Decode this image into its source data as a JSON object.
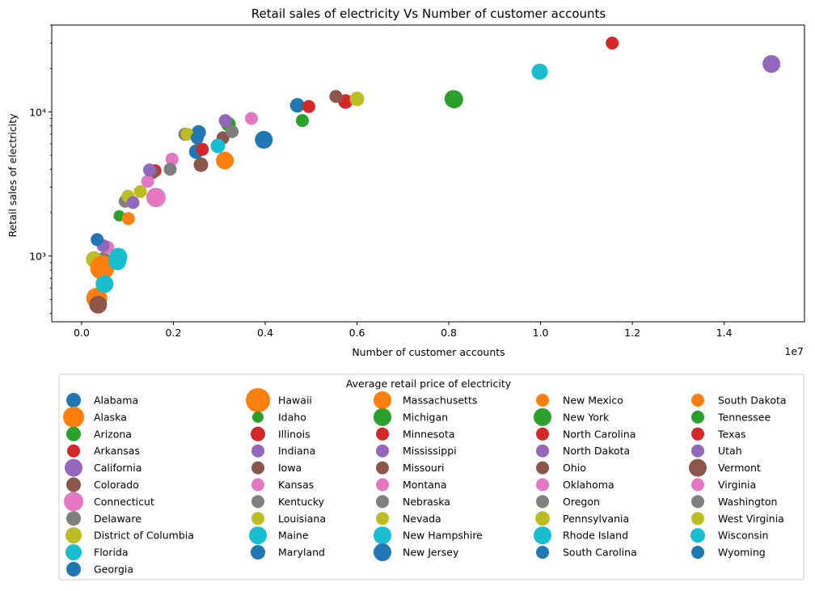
{
  "chart_data": {
    "type": "scatter",
    "title": "Retail sales of electricity Vs Number of customer accounts",
    "xlabel": "Number of customer accounts",
    "ylabel": "Retail sales of electricity",
    "x_offset_label": "1e7",
    "x_scale": "linear",
    "y_scale": "log",
    "xlim": [
      -650000,
      15750000
    ],
    "ylim": [
      350,
      40000
    ],
    "x_ticks": [
      0,
      2000000,
      4000000,
      6000000,
      8000000,
      10000000,
      12000000,
      14000000
    ],
    "x_tick_labels": [
      "0.0",
      "0.2",
      "0.4",
      "0.6",
      "0.8",
      "1.0",
      "1.2",
      "1.4"
    ],
    "y_ticks": [
      1000,
      10000
    ],
    "y_tick_labels": [
      "10³",
      "10⁴"
    ],
    "legend_title": "Average retail price of electricity",
    "legend_position": "below plot",
    "palette": [
      "#1f77b4",
      "#ff7f0e",
      "#2ca02c",
      "#d62728",
      "#9467bd",
      "#8c564b",
      "#e377c2",
      "#7f7f7f",
      "#bcbd22",
      "#17becf"
    ],
    "points": [
      {
        "state": "Alabama",
        "x": 2550000,
        "y": 7200,
        "size": 9
      },
      {
        "state": "Alaska",
        "x": 330000,
        "y": 510,
        "size": 13
      },
      {
        "state": "Arizona",
        "x": 3200000,
        "y": 8200,
        "size": 9
      },
      {
        "state": "Arkansas",
        "x": 1600000,
        "y": 3900,
        "size": 8
      },
      {
        "state": "California",
        "x": 15030000,
        "y": 21500,
        "size": 11
      },
      {
        "state": "Colorado",
        "x": 2600000,
        "y": 4300,
        "size": 9
      },
      {
        "state": "Connecticut",
        "x": 1620000,
        "y": 2550,
        "size": 12
      },
      {
        "state": "Delaware",
        "x": 480000,
        "y": 950,
        "size": 9
      },
      {
        "state": "District of Columbia",
        "x": 270000,
        "y": 950,
        "size": 10
      },
      {
        "state": "Florida",
        "x": 9980000,
        "y": 19000,
        "size": 10
      },
      {
        "state": "Georgia",
        "x": 4700000,
        "y": 11100,
        "size": 9
      },
      {
        "state": "Hawaii",
        "x": 450000,
        "y": 830,
        "size": 15
      },
      {
        "state": "Idaho",
        "x": 820000,
        "y": 1900,
        "size": 7
      },
      {
        "state": "Illinois",
        "x": 5750000,
        "y": 11800,
        "size": 9
      },
      {
        "state": "Indiana",
        "x": 3130000,
        "y": 8700,
        "size": 8
      },
      {
        "state": "Iowa",
        "x": 1550000,
        "y": 3800,
        "size": 8
      },
      {
        "state": "Kansas",
        "x": 1440000,
        "y": 3300,
        "size": 8
      },
      {
        "state": "Kentucky",
        "x": 2250000,
        "y": 7000,
        "size": 8
      },
      {
        "state": "Louisiana",
        "x": 2300000,
        "y": 7000,
        "size": 8
      },
      {
        "state": "Maine",
        "x": 780000,
        "y": 920,
        "size": 11
      },
      {
        "state": "Maryland",
        "x": 2500000,
        "y": 5300,
        "size": 9
      },
      {
        "state": "Massachusetts",
        "x": 3120000,
        "y": 4600,
        "size": 11
      },
      {
        "state": "Michigan",
        "x": 8100000,
        "y": 12300,
        "size": 11
      },
      {
        "state": "Minnesota",
        "x": 2630000,
        "y": 5500,
        "size": 8
      },
      {
        "state": "Mississippi",
        "x": 1480000,
        "y": 3950,
        "size": 8
      },
      {
        "state": "Missouri",
        "x": 3080000,
        "y": 6600,
        "size": 8
      },
      {
        "state": "Montana",
        "x": 570000,
        "y": 1150,
        "size": 8
      },
      {
        "state": "Nebraska",
        "x": 950000,
        "y": 2400,
        "size": 8
      },
      {
        "state": "Nevada",
        "x": 1010000,
        "y": 2600,
        "size": 8
      },
      {
        "state": "New Hampshire",
        "x": 800000,
        "y": 990,
        "size": 11
      },
      {
        "state": "New Jersey",
        "x": 3970000,
        "y": 6400,
        "size": 11
      },
      {
        "state": "New Mexico",
        "x": 1020000,
        "y": 1820,
        "size": 8
      },
      {
        "state": "New York",
        "x": 8120000,
        "y": 12200,
        "size": 11
      },
      {
        "state": "North Carolina",
        "x": 4950000,
        "y": 10900,
        "size": 8
      },
      {
        "state": "North Dakota",
        "x": 470000,
        "y": 1180,
        "size": 8
      },
      {
        "state": "Ohio",
        "x": 5540000,
        "y": 12800,
        "size": 8
      },
      {
        "state": "Oklahoma",
        "x": 1970000,
        "y": 4700,
        "size": 8
      },
      {
        "state": "Oregon",
        "x": 1930000,
        "y": 4000,
        "size": 8
      },
      {
        "state": "Pennsylvania",
        "x": 6000000,
        "y": 12300,
        "size": 9
      },
      {
        "state": "Rhode Island",
        "x": 500000,
        "y": 640,
        "size": 11
      },
      {
        "state": "South Carolina",
        "x": 2520000,
        "y": 6600,
        "size": 8
      },
      {
        "state": "South Dakota",
        "x": 450000,
        "y": 860,
        "size": 8
      },
      {
        "state": "Tennessee",
        "x": 4810000,
        "y": 8700,
        "size": 8
      },
      {
        "state": "Texas",
        "x": 11560000,
        "y": 30000,
        "size": 8
      },
      {
        "state": "Utah",
        "x": 1120000,
        "y": 2350,
        "size": 8
      },
      {
        "state": "Vermont",
        "x": 360000,
        "y": 460,
        "size": 11
      },
      {
        "state": "Virginia",
        "x": 3700000,
        "y": 9000,
        "size": 8
      },
      {
        "state": "Washington",
        "x": 3280000,
        "y": 7300,
        "size": 8
      },
      {
        "state": "West Virginia",
        "x": 1280000,
        "y": 2800,
        "size": 8
      },
      {
        "state": "Wisconsin",
        "x": 2970000,
        "y": 5800,
        "size": 9
      },
      {
        "state": "Wyoming",
        "x": 340000,
        "y": 1300,
        "size": 8
      }
    ]
  }
}
